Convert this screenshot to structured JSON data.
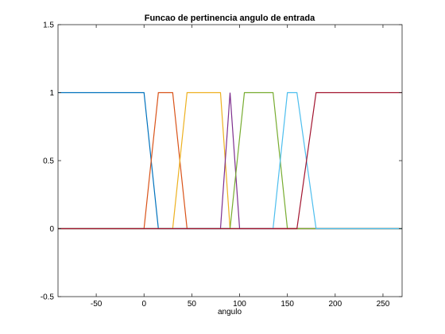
{
  "chart_data": {
    "type": "line",
    "title": "Funcao de pertinencia angulo de entrada",
    "xlabel": "angulo",
    "ylabel": "",
    "xlim": [
      -90,
      270
    ],
    "ylim": [
      -0.5,
      1.5
    ],
    "xticks": [
      -50,
      0,
      50,
      100,
      150,
      200,
      250
    ],
    "yticks": [
      -0.5,
      0,
      0.5,
      1,
      1.5
    ],
    "xtick_labels": [
      "-50",
      "0",
      "50",
      "100",
      "150",
      "200",
      "250"
    ],
    "ytick_labels": [
      "-0.5",
      "0",
      "0.5",
      "1",
      "1.5"
    ],
    "grid": false,
    "legend": "none",
    "series": [
      {
        "color": "#0072bd",
        "x": [
          -90,
          0,
          15,
          270
        ],
        "y": [
          1,
          1,
          0,
          0
        ]
      },
      {
        "color": "#d95319",
        "x": [
          -90,
          0,
          15,
          30,
          45,
          270
        ],
        "y": [
          0,
          0,
          1,
          1,
          0,
          0
        ]
      },
      {
        "color": "#edb120",
        "x": [
          -90,
          30,
          45,
          80,
          90,
          270
        ],
        "y": [
          0,
          0,
          1,
          1,
          0,
          0
        ]
      },
      {
        "color": "#7e2f8e",
        "x": [
          -90,
          80,
          90,
          100,
          270
        ],
        "y": [
          0,
          0,
          1,
          0,
          0
        ]
      },
      {
        "color": "#77ac30",
        "x": [
          -90,
          90,
          105,
          135,
          150,
          270
        ],
        "y": [
          0,
          0,
          1,
          1,
          0,
          0
        ]
      },
      {
        "color": "#4dbeee",
        "x": [
          -90,
          135,
          150,
          160,
          180,
          270
        ],
        "y": [
          0,
          0,
          1,
          1,
          0,
          0
        ]
      },
      {
        "color": "#a2142f",
        "x": [
          -90,
          160,
          180,
          270
        ],
        "y": [
          0,
          0,
          1,
          1
        ]
      }
    ]
  }
}
